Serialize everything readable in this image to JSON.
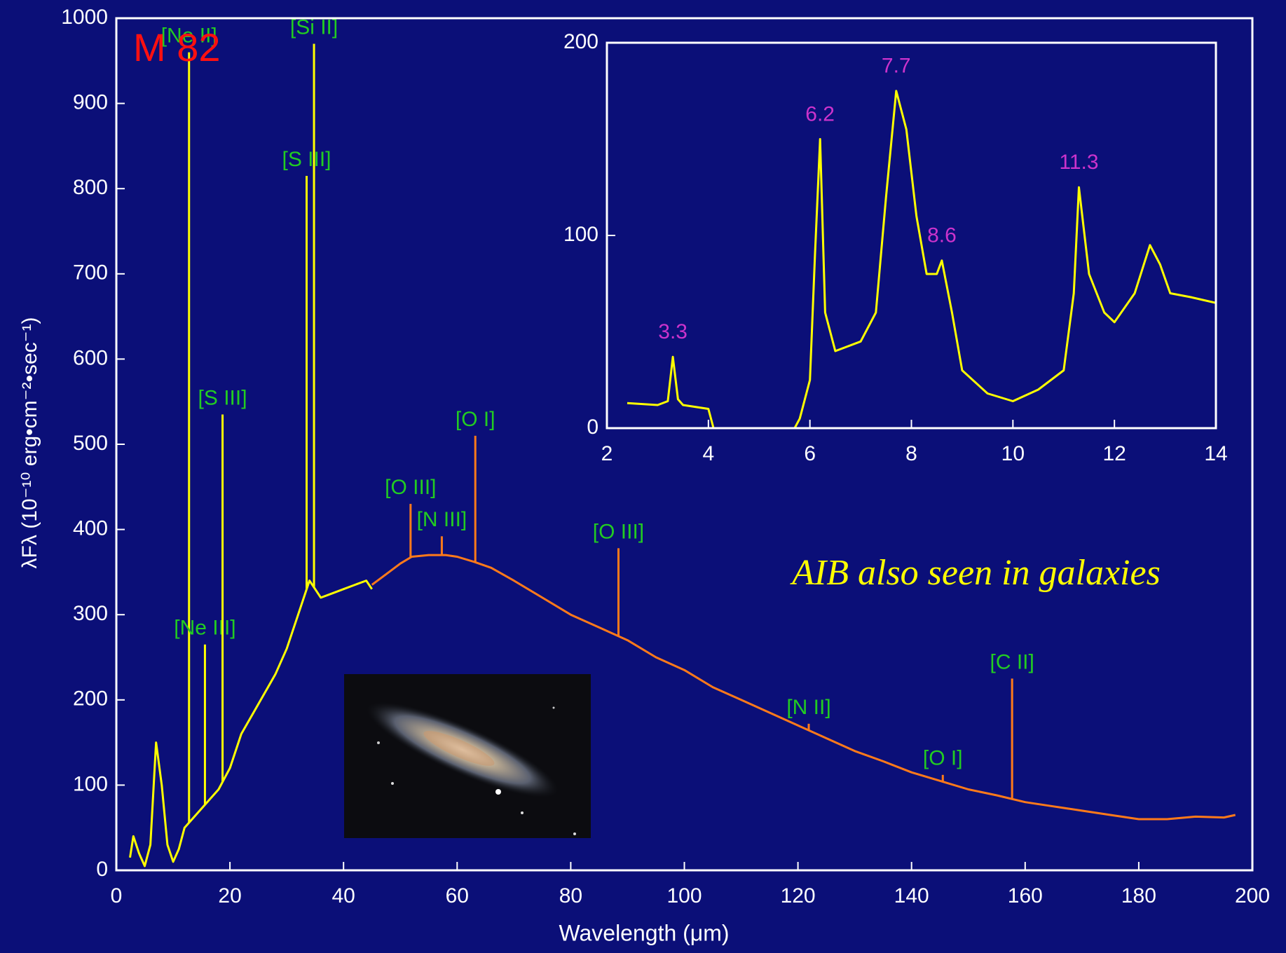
{
  "chart_data": [
    {
      "type": "line",
      "title": "M 82",
      "xlabel": "Wavelength (μm)",
      "ylabel": "λFλ (10⁻¹⁰ erg•cm⁻²•sec⁻¹)",
      "annotation": "AIB also seen in galaxies",
      "xlim": [
        0,
        200
      ],
      "ylim": [
        0,
        1000
      ],
      "xticks": [
        0,
        20,
        40,
        60,
        80,
        100,
        120,
        140,
        160,
        180,
        200
      ],
      "yticks": [
        0,
        100,
        200,
        300,
        400,
        500,
        600,
        700,
        800,
        900,
        1000
      ],
      "series": [
        {
          "color": "#ffff00",
          "x": [
            2.4,
            3,
            4,
            5,
            6,
            7,
            8,
            9,
            10,
            11,
            12,
            14,
            16,
            18,
            20,
            22,
            25,
            28,
            30,
            32,
            34,
            35,
            36,
            38,
            40,
            42,
            44,
            45
          ],
          "values": [
            15,
            40,
            20,
            5,
            30,
            150,
            100,
            30,
            10,
            25,
            50,
            65,
            80,
            95,
            120,
            160,
            195,
            230,
            260,
            300,
            340,
            330,
            320,
            325,
            330,
            335,
            340,
            330
          ]
        },
        {
          "color": "#ff7a1a",
          "x": [
            45,
            48,
            50,
            52,
            55,
            58,
            60,
            63,
            66,
            70,
            75,
            80,
            85,
            90,
            95,
            100,
            105,
            110,
            115,
            120,
            125,
            130,
            135,
            140,
            145,
            150,
            155,
            160,
            165,
            170,
            175,
            180,
            185,
            190,
            195,
            197
          ],
          "values": [
            335,
            350,
            360,
            368,
            370,
            370,
            368,
            362,
            355,
            340,
            320,
            300,
            285,
            270,
            250,
            235,
            215,
            200,
            185,
            170,
            155,
            140,
            128,
            115,
            105,
            95,
            88,
            80,
            75,
            70,
            65,
            60,
            60,
            63,
            62,
            65
          ]
        }
      ],
      "lines": [
        {
          "label": "[Ne II]",
          "x": 12.8,
          "peak": 960,
          "color": "#ffff00"
        },
        {
          "label": "[Ne III]",
          "x": 15.6,
          "peak": 265,
          "color": "#ffff00"
        },
        {
          "label": "[S III]",
          "x": 18.7,
          "peak": 535,
          "color": "#ffff00"
        },
        {
          "label": "[S III]",
          "x": 33.5,
          "peak": 815,
          "color": "#ffff00"
        },
        {
          "label": "[Si II]",
          "x": 34.8,
          "peak": 970,
          "color": "#ffff00"
        },
        {
          "label": "[O III]",
          "x": 51.8,
          "peak": 430,
          "color": "#ff7a1a"
        },
        {
          "label": "[N III]",
          "x": 57.3,
          "peak": 392,
          "color": "#ff7a1a"
        },
        {
          "label": "[O I]",
          "x": 63.2,
          "peak": 510,
          "color": "#ff7a1a"
        },
        {
          "label": "[O III]",
          "x": 88.4,
          "peak": 378,
          "color": "#ff7a1a"
        },
        {
          "label": "[N II]",
          "x": 121.9,
          "peak": 172,
          "color": "#ff7a1a"
        },
        {
          "label": "[O I]",
          "x": 145.5,
          "peak": 112,
          "color": "#ff7a1a"
        },
        {
          "label": "[C II]",
          "x": 157.7,
          "peak": 225,
          "color": "#ff7a1a"
        }
      ]
    },
    {
      "type": "line",
      "xlim": [
        2,
        14
      ],
      "ylim": [
        0,
        200
      ],
      "xticks": [
        2,
        4,
        6,
        8,
        10,
        12,
        14
      ],
      "yticks": [
        0,
        100,
        200
      ],
      "series": [
        {
          "color": "#ffff00",
          "x": [
            2.4,
            3,
            3.2,
            3.3,
            3.4,
            3.5,
            4,
            4.1,
            4.5,
            5,
            5.5,
            5.7,
            5.8,
            6,
            6.1,
            6.2,
            6.3,
            6.5,
            7,
            7.3,
            7.5,
            7.7,
            7.9,
            8.1,
            8.3,
            8.5,
            8.6,
            8.8,
            9,
            9.5,
            10,
            10.5,
            11,
            11.2,
            11.3,
            11.5,
            11.8,
            12,
            12.4,
            12.7,
            12.9,
            13.1,
            13.5,
            14
          ],
          "values": [
            13,
            12,
            14,
            37,
            15,
            12,
            10,
            0,
            0,
            0,
            0,
            0,
            5,
            25,
            90,
            150,
            60,
            40,
            45,
            60,
            120,
            175,
            155,
            110,
            80,
            80,
            87,
            60,
            30,
            18,
            14,
            20,
            30,
            70,
            125,
            80,
            60,
            55,
            70,
            95,
            85,
            70,
            68,
            65
          ]
        }
      ],
      "bands": [
        3.3,
        6.2,
        7.7,
        8.6,
        11.3
      ],
      "band_color": "#cc33cc"
    }
  ]
}
